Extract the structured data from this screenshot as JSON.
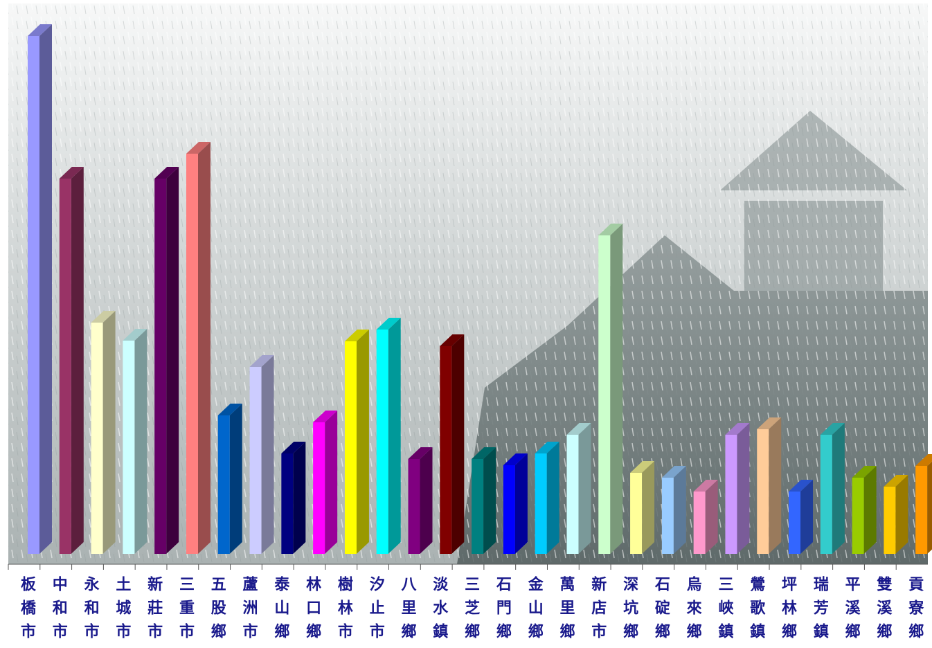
{
  "chart_data": {
    "type": "bar3d",
    "categories": [
      "板橋市",
      "中和市",
      "永和市",
      "土城市",
      "新莊市",
      "三重市",
      "五股鄉",
      "蘆洲市",
      "泰山鄉",
      "林口鄉",
      "樹林市",
      "汐止市",
      "八里鄉",
      "淡水鎮",
      "三芝鄉",
      "石門鄉",
      "金山鄉",
      "萬里鄉",
      "新店市",
      "深坑鄉",
      "石碇鄉",
      "烏來鄉",
      "三峽鎮",
      "鶯歌鎮",
      "坪林鄉",
      "瑞芳鎮",
      "平溪鄉",
      "雙溪鄉",
      "貢寮鄉"
    ],
    "values": [
      748,
      542,
      334,
      308,
      542,
      578,
      200,
      270,
      145,
      190,
      307,
      324,
      137,
      300,
      137,
      128,
      145,
      172,
      460,
      117,
      110,
      90,
      172,
      180,
      90,
      172,
      110,
      97,
      127
    ],
    "colors": [
      "#9999ff",
      "#993366",
      "#ffffcc",
      "#ccffff",
      "#660066",
      "#ff8080",
      "#0066cc",
      "#ccccff",
      "#000080",
      "#ff00ff",
      "#ffff00",
      "#00ffff",
      "#800080",
      "#800000",
      "#008080",
      "#0000ff",
      "#00ccff",
      "#ccffff",
      "#ccffcc",
      "#ffff99",
      "#99ccff",
      "#ff99cc",
      "#cc99ff",
      "#ffcc99",
      "#3366ff",
      "#33cccc",
      "#99cc00",
      "#ffcc00",
      "#ff9900"
    ]
  }
}
